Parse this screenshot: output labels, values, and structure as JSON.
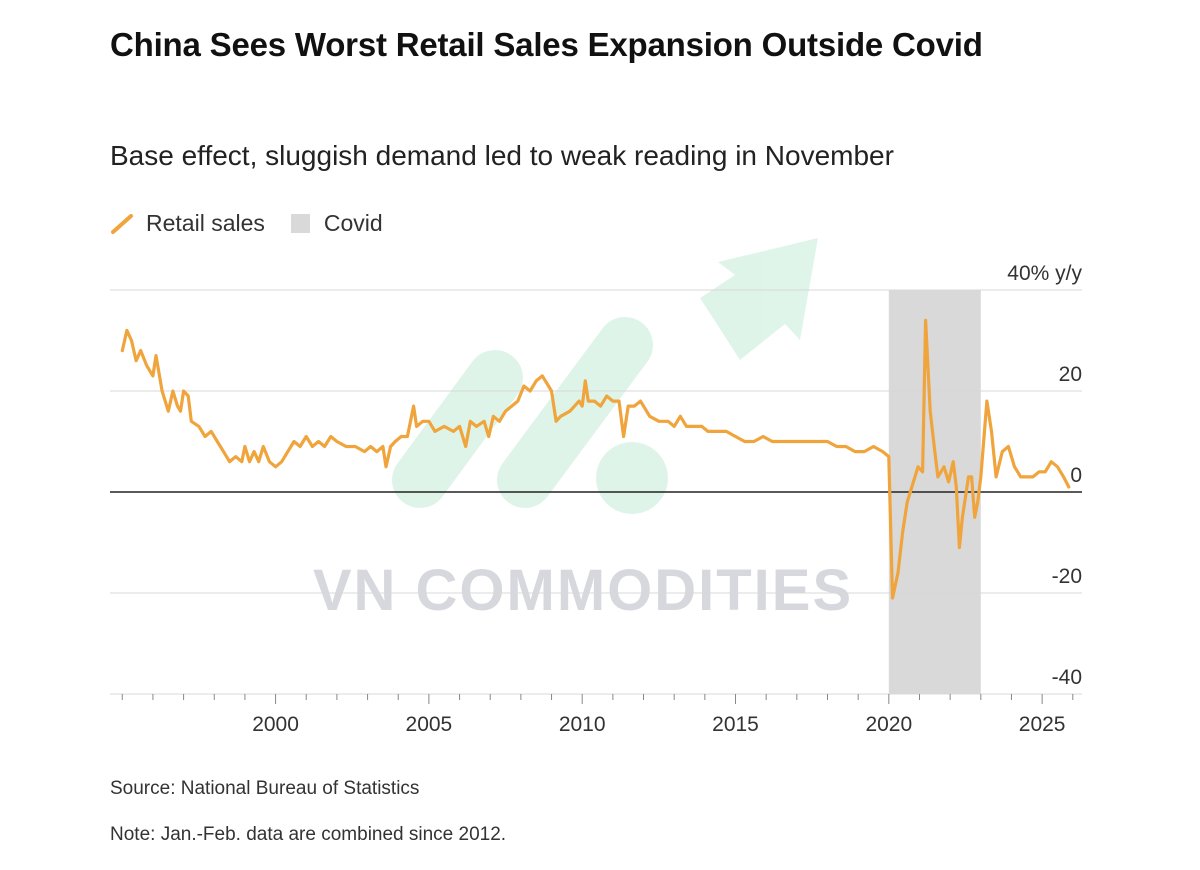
{
  "header": {
    "title": "China Sees Worst Retail Sales Expansion Outside Covid",
    "subtitle": "Base effect, sluggish demand led to weak reading in November"
  },
  "legend": {
    "retail_label": "Retail sales",
    "covid_label": "Covid"
  },
  "footer": {
    "source": "Source: National Bureau of Statistics",
    "note": "Note: Jan.-Feb. data are combined since 2012."
  },
  "watermark": {
    "text": "VN COMMODITIES"
  },
  "colors": {
    "line": "#f0a43c",
    "covid": "#d9d9d9",
    "grid": "#d8d8d8",
    "zero": "#222222"
  },
  "chart_data": {
    "type": "line",
    "title": "China Sees Worst Retail Sales Expansion Outside Covid",
    "subtitle": "Base effect, sluggish demand led to weak reading in November",
    "ylabel": "40% y/y",
    "xlim": [
      1994.6,
      2026.3
    ],
    "ylim": [
      -40,
      40
    ],
    "xticks": [
      2000,
      2005,
      2010,
      2015,
      2020,
      2025
    ],
    "yticks": [
      {
        "value": 40,
        "label": "40% y/y"
      },
      {
        "value": 20,
        "label": "20"
      },
      {
        "value": 0,
        "label": "0"
      },
      {
        "value": -20,
        "label": "-20"
      },
      {
        "value": -40,
        "label": "-40"
      }
    ],
    "shaded_region": {
      "name": "Covid",
      "x_start": 2020.0,
      "x_end": 2023.0
    },
    "series": [
      {
        "name": "Retail sales",
        "points": [
          [
            1995.0,
            28
          ],
          [
            1995.15,
            32
          ],
          [
            1995.3,
            30
          ],
          [
            1995.45,
            26
          ],
          [
            1995.6,
            28
          ],
          [
            1995.8,
            25
          ],
          [
            1996.0,
            23
          ],
          [
            1996.1,
            27
          ],
          [
            1996.3,
            20
          ],
          [
            1996.5,
            16
          ],
          [
            1996.65,
            20
          ],
          [
            1996.8,
            17
          ],
          [
            1996.9,
            16
          ],
          [
            1997.0,
            20
          ],
          [
            1997.15,
            19
          ],
          [
            1997.25,
            14
          ],
          [
            1997.5,
            13
          ],
          [
            1997.7,
            11
          ],
          [
            1997.9,
            12
          ],
          [
            1998.1,
            10
          ],
          [
            1998.3,
            8
          ],
          [
            1998.5,
            6
          ],
          [
            1998.7,
            7
          ],
          [
            1998.9,
            6
          ],
          [
            1999.0,
            9
          ],
          [
            1999.15,
            6
          ],
          [
            1999.3,
            8
          ],
          [
            1999.45,
            6
          ],
          [
            1999.6,
            9
          ],
          [
            1999.8,
            6
          ],
          [
            2000.0,
            5
          ],
          [
            2000.2,
            6
          ],
          [
            2000.4,
            8
          ],
          [
            2000.6,
            10
          ],
          [
            2000.8,
            9
          ],
          [
            2001.0,
            11
          ],
          [
            2001.2,
            9
          ],
          [
            2001.4,
            10
          ],
          [
            2001.6,
            9
          ],
          [
            2001.8,
            11
          ],
          [
            2002.0,
            10
          ],
          [
            2002.3,
            9
          ],
          [
            2002.6,
            9
          ],
          [
            2002.9,
            8
          ],
          [
            2003.1,
            9
          ],
          [
            2003.3,
            8
          ],
          [
            2003.5,
            9
          ],
          [
            2003.6,
            5
          ],
          [
            2003.75,
            9
          ],
          [
            2003.9,
            10
          ],
          [
            2004.1,
            11
          ],
          [
            2004.3,
            11
          ],
          [
            2004.5,
            17
          ],
          [
            2004.6,
            13
          ],
          [
            2004.8,
            14
          ],
          [
            2005.0,
            14
          ],
          [
            2005.2,
            12
          ],
          [
            2005.5,
            13
          ],
          [
            2005.8,
            12
          ],
          [
            2006.0,
            13
          ],
          [
            2006.2,
            9
          ],
          [
            2006.35,
            14
          ],
          [
            2006.55,
            13
          ],
          [
            2006.8,
            14
          ],
          [
            2006.95,
            11
          ],
          [
            2007.1,
            15
          ],
          [
            2007.3,
            14
          ],
          [
            2007.5,
            16
          ],
          [
            2007.7,
            17
          ],
          [
            2007.9,
            18
          ],
          [
            2008.1,
            21
          ],
          [
            2008.3,
            20
          ],
          [
            2008.5,
            22
          ],
          [
            2008.7,
            23
          ],
          [
            2008.9,
            21
          ],
          [
            2009.0,
            20
          ],
          [
            2009.15,
            14
          ],
          [
            2009.3,
            15
          ],
          [
            2009.6,
            16
          ],
          [
            2009.9,
            18
          ],
          [
            2010.0,
            17
          ],
          [
            2010.1,
            22
          ],
          [
            2010.2,
            18
          ],
          [
            2010.4,
            18
          ],
          [
            2010.6,
            17
          ],
          [
            2010.8,
            19
          ],
          [
            2011.0,
            18
          ],
          [
            2011.2,
            18
          ],
          [
            2011.35,
            11
          ],
          [
            2011.5,
            17
          ],
          [
            2011.7,
            17
          ],
          [
            2011.9,
            18
          ],
          [
            2012.0,
            17
          ],
          [
            2012.2,
            15
          ],
          [
            2012.5,
            14
          ],
          [
            2012.8,
            14
          ],
          [
            2013.0,
            13
          ],
          [
            2013.2,
            15
          ],
          [
            2013.4,
            13
          ],
          [
            2013.6,
            13
          ],
          [
            2013.9,
            13
          ],
          [
            2014.1,
            12
          ],
          [
            2014.4,
            12
          ],
          [
            2014.7,
            12
          ],
          [
            2015.0,
            11
          ],
          [
            2015.3,
            10
          ],
          [
            2015.6,
            10
          ],
          [
            2015.9,
            11
          ],
          [
            2016.2,
            10
          ],
          [
            2016.5,
            10
          ],
          [
            2016.8,
            10
          ],
          [
            2017.1,
            10
          ],
          [
            2017.4,
            10
          ],
          [
            2017.7,
            10
          ],
          [
            2018.0,
            10
          ],
          [
            2018.3,
            9
          ],
          [
            2018.6,
            9
          ],
          [
            2018.9,
            8
          ],
          [
            2019.2,
            8
          ],
          [
            2019.5,
            9
          ],
          [
            2019.8,
            8
          ],
          [
            2020.0,
            7
          ],
          [
            2020.12,
            -21
          ],
          [
            2020.3,
            -16
          ],
          [
            2020.45,
            -8
          ],
          [
            2020.6,
            -2
          ],
          [
            2020.8,
            2
          ],
          [
            2020.95,
            5
          ],
          [
            2021.1,
            4
          ],
          [
            2021.2,
            34
          ],
          [
            2021.35,
            16
          ],
          [
            2021.5,
            8
          ],
          [
            2021.6,
            3
          ],
          [
            2021.8,
            5
          ],
          [
            2021.95,
            2
          ],
          [
            2022.1,
            6
          ],
          [
            2022.2,
            1
          ],
          [
            2022.3,
            -11
          ],
          [
            2022.4,
            -5
          ],
          [
            2022.6,
            3
          ],
          [
            2022.7,
            3
          ],
          [
            2022.8,
            -5
          ],
          [
            2022.9,
            -2
          ],
          [
            2023.0,
            3
          ],
          [
            2023.2,
            18
          ],
          [
            2023.35,
            12
          ],
          [
            2023.5,
            3
          ],
          [
            2023.7,
            8
          ],
          [
            2023.9,
            9
          ],
          [
            2024.1,
            5
          ],
          [
            2024.3,
            3
          ],
          [
            2024.5,
            3
          ],
          [
            2024.7,
            3
          ],
          [
            2024.9,
            4
          ],
          [
            2025.1,
            4
          ],
          [
            2025.3,
            6
          ],
          [
            2025.5,
            5
          ],
          [
            2025.7,
            3
          ],
          [
            2025.87,
            1
          ]
        ]
      }
    ]
  }
}
